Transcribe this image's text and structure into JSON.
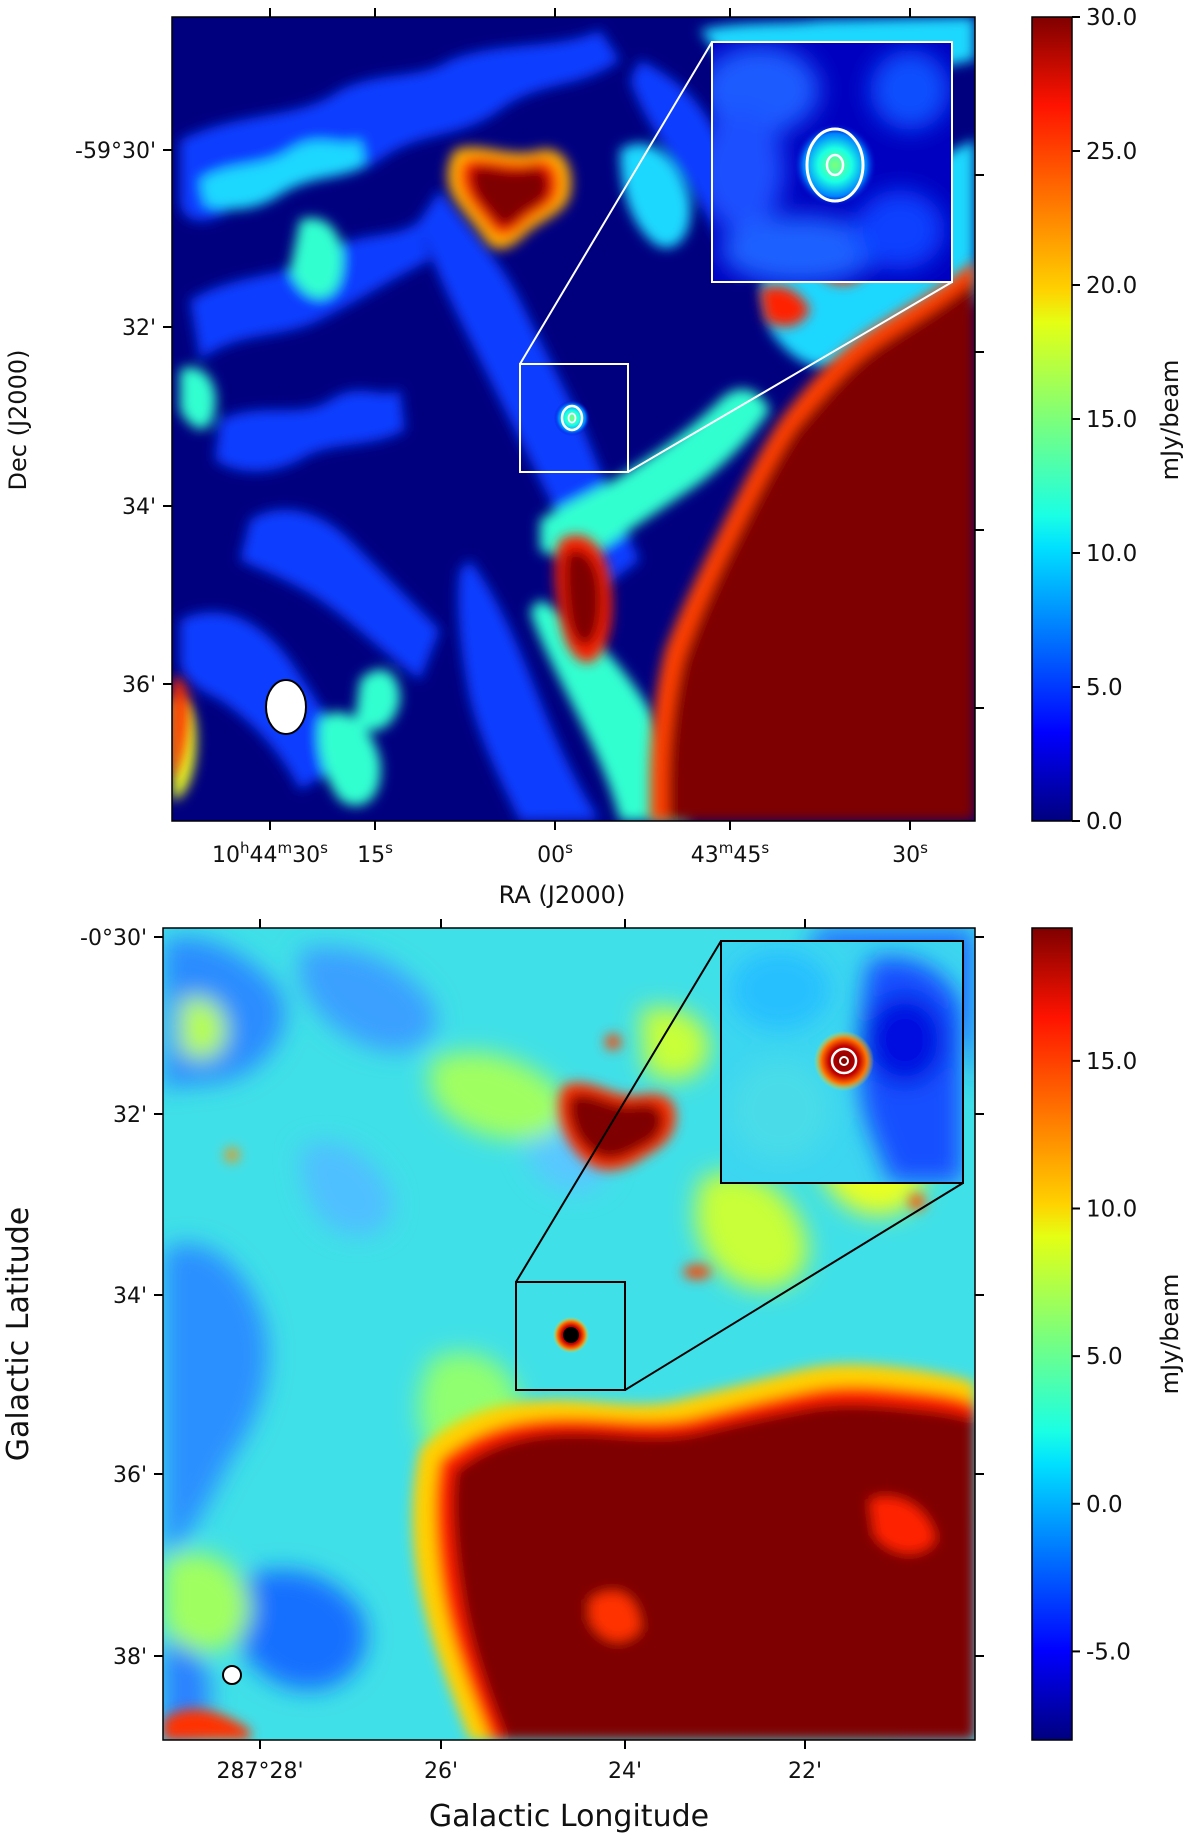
{
  "chart_data": [
    {
      "type": "heatmap",
      "title": "",
      "xlabel": "RA (J2000)",
      "ylabel": "Dec (J2000)",
      "x_ticks": [
        {
          "main": "10",
          "sup1": "h",
          "mid": "44",
          "sup2": "m",
          "end": "30",
          "sup3": "s"
        },
        {
          "main": "15",
          "sup1": "s"
        },
        {
          "main": "00",
          "sup1": "s"
        },
        {
          "main": "43",
          "sup1": "m",
          "mid": "45",
          "sup2": "s"
        },
        {
          "main": "30",
          "sup1": "s"
        }
      ],
      "y_ticks": [
        "-59°30'",
        "32'",
        "34'",
        "36'"
      ],
      "colorbar": {
        "label": "mJy/beam",
        "min": 0.0,
        "max": 30.0,
        "ticks": [
          "0.0",
          "5.0",
          "10.0",
          "15.0",
          "20.0",
          "25.0",
          "30.0"
        ],
        "colormap": "jet"
      },
      "annotations": [
        "zoom inset of compact source with white contours",
        "beam ellipse lower-left"
      ],
      "colors": {
        "inset_frame": "#ffffff",
        "contour": "#ffffff"
      }
    },
    {
      "type": "heatmap",
      "title": "",
      "xlabel": "Galactic Longitude",
      "ylabel": "Galactic Latitude",
      "x_ticks": [
        "287°28'",
        "26'",
        "24'",
        "22'"
      ],
      "y_ticks": [
        "-0°30'",
        "32'",
        "34'",
        "36'",
        "38'"
      ],
      "colorbar": {
        "label": "mJy/beam",
        "min": -8.0,
        "max": 19.5,
        "ticks": [
          "-5.0",
          "0.0",
          "5.0",
          "10.0",
          "15.0"
        ],
        "colormap": "jet"
      },
      "annotations": [
        "zoom inset of compact source with white contours",
        "beam circle lower-left"
      ],
      "colors": {
        "inset_frame": "#000000",
        "contour": "#ffffff"
      }
    }
  ]
}
